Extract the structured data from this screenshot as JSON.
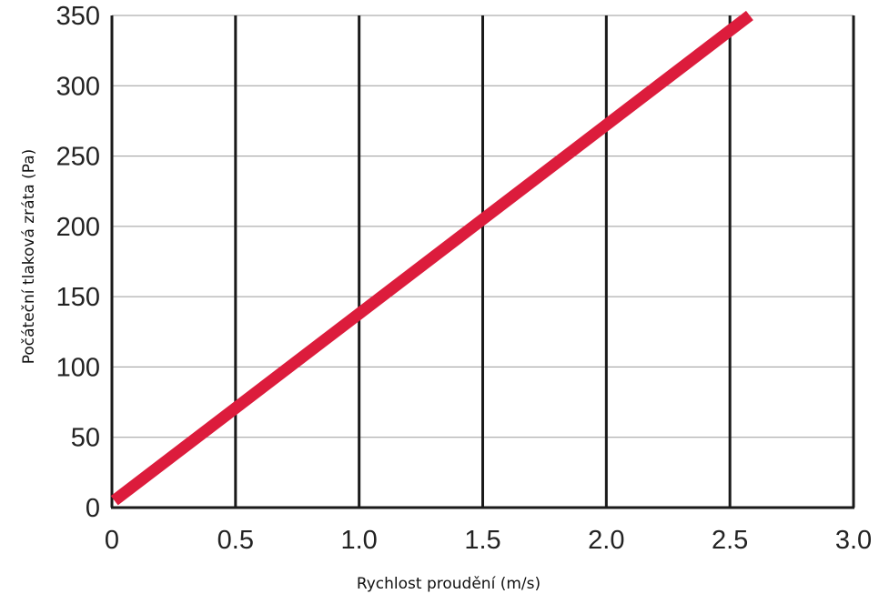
{
  "chart_data": {
    "type": "line",
    "title": "",
    "xlabel": "Rychlost proudění (m/s)",
    "ylabel": "Počáteční tlaková zráta (Pa)",
    "xlim": [
      0,
      3.0
    ],
    "ylim": [
      0,
      350
    ],
    "x_ticks": [
      "0",
      "0.5",
      "1.0",
      "1.5",
      "2.0",
      "2.5",
      "3.0"
    ],
    "x_tick_values": [
      0,
      0.5,
      1.0,
      1.5,
      2.0,
      2.5,
      3.0
    ],
    "y_ticks": [
      "0",
      "50",
      "100",
      "150",
      "200",
      "250",
      "300",
      "350"
    ],
    "y_tick_values": [
      0,
      50,
      100,
      150,
      200,
      250,
      300,
      350
    ],
    "grid": true,
    "legend": "none",
    "series": [
      {
        "x": [
          0.01,
          2.58
        ],
        "y": [
          5,
          350
        ],
        "color": "#dc1c3c"
      }
    ],
    "colors": {
      "line": "#dc1c3c",
      "vertical_grid": "#1a1a1a",
      "horizontal_grid": "#9a9a9a",
      "axis": "#1a1a1a",
      "text": "#222222"
    }
  }
}
